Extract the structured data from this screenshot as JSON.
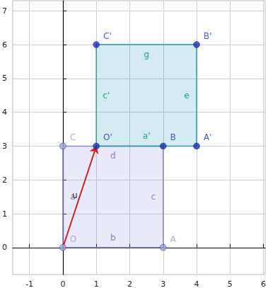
{
  "chart_data": {
    "type": "geometry",
    "xlim": [
      -1.5,
      6.05
    ],
    "ylim": [
      -0.8,
      7.3
    ],
    "xticks": [
      -1,
      0,
      1,
      2,
      3,
      4,
      5,
      6
    ],
    "yticks": [
      0,
      1,
      2,
      3,
      4,
      5,
      6,
      7
    ],
    "grid": true,
    "points": [
      {
        "label": "O",
        "x": 0,
        "y": 0,
        "color": "#9aa2d6"
      },
      {
        "label": "A",
        "x": 3,
        "y": 0,
        "color": "#9aa2d6"
      },
      {
        "label": "B",
        "x": 3,
        "y": 3,
        "color": "#1a2fb5"
      },
      {
        "label": "C",
        "x": 0,
        "y": 3,
        "color": "#9aa2d6"
      },
      {
        "label": "O'",
        "x": 1,
        "y": 3,
        "color": "#1a2fb5"
      },
      {
        "label": "A'",
        "x": 4,
        "y": 3,
        "color": "#1a2fb5"
      },
      {
        "label": "B'",
        "x": 4,
        "y": 6,
        "color": "#1a2fb5"
      },
      {
        "label": "C'",
        "x": 1,
        "y": 6,
        "color": "#1a2fb5"
      }
    ],
    "polygons": [
      {
        "vertices": [
          "O",
          "A",
          "B",
          "C"
        ],
        "color": "#9c9ce8"
      },
      {
        "vertices": [
          "O'",
          "A'",
          "B'",
          "C'"
        ],
        "color": "#3aa6c4"
      }
    ],
    "segments": [
      {
        "label": "a",
        "from": "O",
        "to": "C",
        "color": "#8a87c8"
      },
      {
        "label": "b",
        "from": "O",
        "to": "A",
        "color": "#8a87c8"
      },
      {
        "label": "c",
        "from": "A",
        "to": "B",
        "color": "#8a87c8"
      },
      {
        "label": "d",
        "from": "B",
        "to": "C",
        "color": "#8a87c8"
      },
      {
        "label": "a'",
        "from": "O'",
        "to": "A'",
        "color": "#2a9e9e"
      },
      {
        "label": "e",
        "from": "A'",
        "to": "B'",
        "color": "#2a9e9e"
      },
      {
        "label": "g",
        "from": "B'",
        "to": "C'",
        "color": "#2a9e9e"
      },
      {
        "label": "c'",
        "from": "C'",
        "to": "O'",
        "color": "#2a9e9e"
      }
    ],
    "vectors": [
      {
        "label": "u",
        "from": "O",
        "to": "O'",
        "color": "#d62020"
      }
    ]
  }
}
